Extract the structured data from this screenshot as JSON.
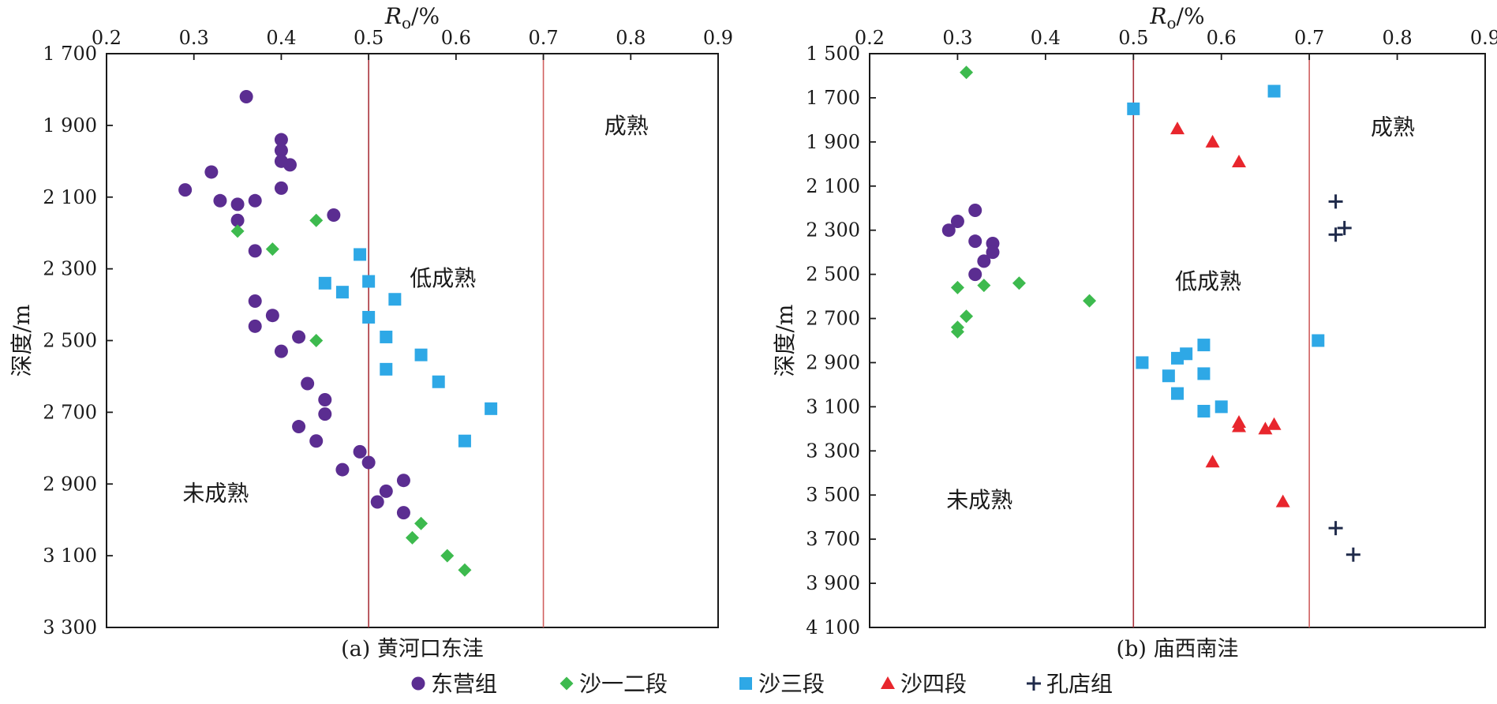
{
  "legend": [
    {
      "name": "东营组",
      "color": "#5b2d91",
      "marker": "circle"
    },
    {
      "name": "沙一二段",
      "color": "#3dba4e",
      "marker": "diamond"
    },
    {
      "name": "沙三段",
      "color": "#2ea8e6",
      "marker": "square"
    },
    {
      "name": "沙四段",
      "color": "#e8262d",
      "marker": "triangle"
    },
    {
      "name": "孔店组",
      "color": "#1f2a4a",
      "marker": "plus"
    }
  ],
  "chart_data": [
    {
      "type": "scatter",
      "caption": "(a) 黄河口东洼",
      "xlabel": "Ro/%",
      "ylabel": "深度/m",
      "xlim": [
        0.2,
        0.9
      ],
      "ylim": [
        1700,
        3300
      ],
      "y_reversed": true,
      "x_ticks": [
        0.2,
        0.3,
        0.4,
        0.5,
        0.6,
        0.7,
        0.8,
        0.9
      ],
      "x_tick_labels": [
        "0.2",
        "0.3",
        "0.4",
        "0.5",
        "0.6",
        "0.7",
        "0.8",
        "0.9"
      ],
      "y_ticks": [
        1700,
        1900,
        2100,
        2300,
        2500,
        2700,
        2900,
        3100,
        3300
      ],
      "y_tick_labels": [
        "1 700",
        "1 900",
        "2 100",
        "2 300",
        "2 500",
        "2 700",
        "2 900",
        "3 100",
        "3 300"
      ],
      "threshold_lines": [
        0.5,
        0.7
      ],
      "regions": [
        {
          "label": "成熟",
          "x": 0.795,
          "y": 1900
        },
        {
          "label": "低成熟",
          "x": 0.585,
          "y": 2325
        },
        {
          "label": "未成熟",
          "x": 0.325,
          "y": 2925
        }
      ],
      "series": [
        {
          "name": "东营组",
          "points": [
            [
              0.36,
              1820
            ],
            [
              0.4,
              1940
            ],
            [
              0.4,
              1970
            ],
            [
              0.4,
              2000
            ],
            [
              0.41,
              2010
            ],
            [
              0.32,
              2030
            ],
            [
              0.29,
              2080
            ],
            [
              0.4,
              2075
            ],
            [
              0.33,
              2110
            ],
            [
              0.35,
              2120
            ],
            [
              0.37,
              2110
            ],
            [
              0.46,
              2150
            ],
            [
              0.35,
              2165
            ],
            [
              0.37,
              2250
            ],
            [
              0.37,
              2390
            ],
            [
              0.39,
              2430
            ],
            [
              0.37,
              2460
            ],
            [
              0.42,
              2490
            ],
            [
              0.4,
              2530
            ],
            [
              0.43,
              2620
            ],
            [
              0.45,
              2665
            ],
            [
              0.45,
              2705
            ],
            [
              0.42,
              2740
            ],
            [
              0.44,
              2780
            ],
            [
              0.49,
              2810
            ],
            [
              0.5,
              2840
            ],
            [
              0.47,
              2860
            ],
            [
              0.54,
              2890
            ],
            [
              0.52,
              2920
            ],
            [
              0.51,
              2950
            ],
            [
              0.54,
              2980
            ]
          ]
        },
        {
          "name": "沙一二段",
          "points": [
            [
              0.35,
              2195
            ],
            [
              0.44,
              2165
            ],
            [
              0.39,
              2245
            ],
            [
              0.44,
              2500
            ],
            [
              0.56,
              3010
            ],
            [
              0.55,
              3050
            ],
            [
              0.59,
              3100
            ],
            [
              0.61,
              3140
            ]
          ]
        },
        {
          "name": "沙三段",
          "points": [
            [
              0.49,
              2260
            ],
            [
              0.45,
              2340
            ],
            [
              0.5,
              2335
            ],
            [
              0.47,
              2365
            ],
            [
              0.53,
              2385
            ],
            [
              0.5,
              2435
            ],
            [
              0.52,
              2490
            ],
            [
              0.56,
              2540
            ],
            [
              0.52,
              2580
            ],
            [
              0.58,
              2615
            ],
            [
              0.64,
              2690
            ],
            [
              0.61,
              2780
            ]
          ]
        }
      ]
    },
    {
      "type": "scatter",
      "caption": "(b) 庙西南洼",
      "xlabel": "Ro/%",
      "ylabel": "深度/m",
      "xlim": [
        0.2,
        0.9
      ],
      "ylim": [
        1500,
        4100
      ],
      "y_reversed": true,
      "x_ticks": [
        0.2,
        0.3,
        0.4,
        0.5,
        0.6,
        0.7,
        0.8,
        0.9
      ],
      "x_tick_labels": [
        "0.2",
        "0.3",
        "0.4",
        "0.5",
        "0.6",
        "0.7",
        "0.8",
        "0.9"
      ],
      "y_ticks": [
        1500,
        1700,
        1900,
        2100,
        2300,
        2500,
        2700,
        2900,
        3100,
        3300,
        3500,
        3700,
        3900,
        4100
      ],
      "y_tick_labels": [
        "1 500",
        "1 700",
        "1 900",
        "2 100",
        "2 300",
        "2 500",
        "2 700",
        "2 900",
        "3 100",
        "3 300",
        "3 500",
        "3 700",
        "3 900",
        "4 100"
      ],
      "threshold_lines": [
        0.5,
        0.7
      ],
      "regions": [
        {
          "label": "成熟",
          "x": 0.795,
          "y": 1830
        },
        {
          "label": "低成熟",
          "x": 0.585,
          "y": 2530
        },
        {
          "label": "未成熟",
          "x": 0.325,
          "y": 3520
        }
      ],
      "series": [
        {
          "name": "东营组",
          "points": [
            [
              0.32,
              2210
            ],
            [
              0.3,
              2260
            ],
            [
              0.29,
              2300
            ],
            [
              0.32,
              2350
            ],
            [
              0.34,
              2360
            ],
            [
              0.34,
              2400
            ],
            [
              0.33,
              2440
            ],
            [
              0.32,
              2500
            ]
          ]
        },
        {
          "name": "沙一二段",
          "points": [
            [
              0.31,
              1585
            ],
            [
              0.3,
              2560
            ],
            [
              0.33,
              2550
            ],
            [
              0.37,
              2540
            ],
            [
              0.45,
              2620
            ],
            [
              0.31,
              2690
            ],
            [
              0.3,
              2740
            ],
            [
              0.3,
              2760
            ]
          ]
        },
        {
          "name": "沙三段",
          "points": [
            [
              0.66,
              1670
            ],
            [
              0.5,
              1750
            ],
            [
              0.58,
              2820
            ],
            [
              0.71,
              2800
            ],
            [
              0.56,
              2860
            ],
            [
              0.55,
              2880
            ],
            [
              0.51,
              2900
            ],
            [
              0.58,
              2950
            ],
            [
              0.54,
              2960
            ],
            [
              0.55,
              3040
            ],
            [
              0.6,
              3100
            ],
            [
              0.58,
              3120
            ]
          ]
        },
        {
          "name": "沙四段",
          "points": [
            [
              0.55,
              1840
            ],
            [
              0.59,
              1900
            ],
            [
              0.62,
              1990
            ],
            [
              0.62,
              3170
            ],
            [
              0.66,
              3180
            ],
            [
              0.62,
              3190
            ],
            [
              0.65,
              3200
            ],
            [
              0.59,
              3350
            ],
            [
              0.67,
              3530
            ]
          ]
        },
        {
          "name": "孔店组",
          "points": [
            [
              0.73,
              2170
            ],
            [
              0.74,
              2290
            ],
            [
              0.73,
              2320
            ],
            [
              0.73,
              3650
            ],
            [
              0.75,
              3770
            ]
          ]
        }
      ]
    }
  ]
}
